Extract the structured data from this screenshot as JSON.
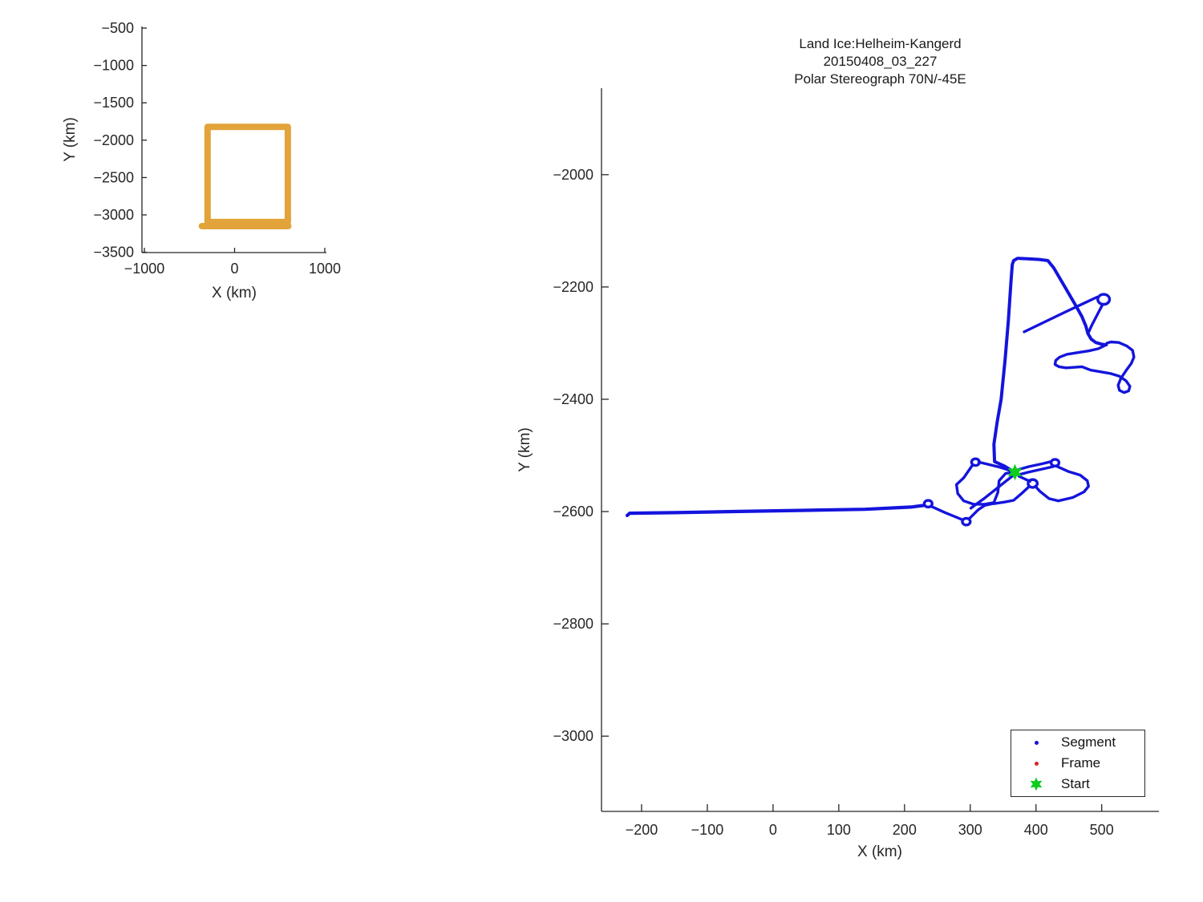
{
  "figure": {
    "background": "#ffffff",
    "text_color": "#262626",
    "axis_color": "#262626"
  },
  "main_plot": {
    "title_line1": "Land Ice:Helheim-Kangerd",
    "title_line2": "20150408_03_227",
    "title_line3": "Polar Stereograph 70N/-45E",
    "xlabel": "X (km)",
    "ylabel": "Y (km)",
    "legend": {
      "items": [
        {
          "label": "Segment",
          "color": "#1414dd",
          "marker": "dot"
        },
        {
          "label": "Frame",
          "color": "#dd2222",
          "marker": "dot"
        },
        {
          "label": "Start",
          "color": "#0ecc1e",
          "marker": "hexagram"
        }
      ]
    }
  },
  "overview_plot": {
    "xlabel": "X (km)",
    "ylabel": "Y (km)"
  },
  "chart_data": [
    {
      "name": "overview-map",
      "type": "line",
      "xlabel": "X (km)",
      "ylabel": "Y (km)",
      "xticks": [
        -1000,
        0,
        1000
      ],
      "yticks": [
        -500,
        -1000,
        -1500,
        -2000,
        -2500,
        -3000,
        -3500
      ],
      "xlim": [
        -1027,
        1018
      ],
      "ylim": [
        -478,
        -3504
      ],
      "grid": false,
      "lines": [
        {
          "name": "coverage-box",
          "color": "#e2a33b",
          "width": 8,
          "points": [
            [
              -300,
              -1823
            ],
            [
              590,
              -1823
            ],
            [
              590,
              -3095
            ],
            [
              -300,
              -3095
            ],
            [
              -300,
              -1823
            ]
          ]
        },
        {
          "name": "coverage-box-bottom",
          "color": "#e2a33b",
          "width": 8,
          "points": [
            [
              -363,
              -3150
            ],
            [
              596,
              -3150
            ]
          ]
        }
      ],
      "circles": [],
      "markers": []
    },
    {
      "name": "flight-track",
      "type": "line",
      "title": [
        "Land Ice:Helheim-Kangerd",
        "20150408_03_227",
        "Polar Stereograph 70N/-45E"
      ],
      "xlabel": "X (km)",
      "ylabel": "Y (km)",
      "xticks": [
        -200,
        -100,
        0,
        100,
        200,
        300,
        400,
        500
      ],
      "yticks": [
        -2000,
        -2200,
        -2400,
        -2600,
        -2800,
        -3000
      ],
      "xlim": [
        -261,
        587
      ],
      "ylim": [
        -1846,
        -3134
      ],
      "grid": false,
      "legend_position": "southeast",
      "series_color": "#1414dd",
      "lines": [
        {
          "name": "west-survey-line",
          "color": "#1414dd",
          "width": 4.2,
          "points": [
            [
              -222,
              -2607
            ],
            [
              -218,
              -2603
            ],
            [
              -150,
              -2602
            ],
            [
              -60,
              -2600
            ],
            [
              40,
              -2598
            ],
            [
              140,
              -2596
            ],
            [
              210,
              -2592
            ],
            [
              230,
              -2589
            ]
          ]
        },
        {
          "name": "turn-a-to-b",
          "color": "#1414dd",
          "width": 3.4,
          "points": [
            [
              241,
              -2591
            ],
            [
              262,
              -2602
            ],
            [
              287,
              -2614
            ]
          ]
        },
        {
          "name": "turn-b-to-lobe",
          "color": "#1414dd",
          "width": 3.4,
          "points": [
            [
              299,
              -2612
            ],
            [
              312,
              -2597
            ],
            [
              322,
              -2589
            ],
            [
              334,
              -2586
            ]
          ]
        },
        {
          "name": "left-lobe",
          "color": "#1414dd",
          "width": 3.4,
          "points": [
            [
              303,
              -2518
            ],
            [
              290,
              -2540
            ],
            [
              279,
              -2552
            ],
            [
              281,
              -2568
            ],
            [
              290,
              -2581
            ],
            [
              305,
              -2587
            ],
            [
              322,
              -2587
            ],
            [
              336,
              -2584
            ],
            [
              342,
              -2566
            ],
            [
              344,
              -2545
            ],
            [
              354,
              -2532
            ],
            [
              366,
              -2530
            ]
          ]
        },
        {
          "name": "left-lobe-top-edge",
          "color": "#1414dd",
          "width": 3.4,
          "points": [
            [
              364,
              -2528
            ],
            [
              345,
              -2521
            ],
            [
              324,
              -2515
            ],
            [
              313,
              -2512
            ]
          ]
        },
        {
          "name": "north-leg-and-descent",
          "color": "#1414dd",
          "width": 4.0,
          "points": [
            [
              369,
              -2531
            ],
            [
              352,
              -2519
            ],
            [
              337,
              -2511
            ],
            [
              336,
              -2480
            ],
            [
              341,
              -2440
            ],
            [
              347,
              -2400
            ],
            [
              353,
              -2330
            ],
            [
              358,
              -2260
            ],
            [
              362,
              -2190
            ],
            [
              364,
              -2160
            ],
            [
              366,
              -2153
            ],
            [
              372,
              -2149
            ],
            [
              390,
              -2150
            ],
            [
              405,
              -2151
            ],
            [
              418,
              -2153
            ],
            [
              427,
              -2166
            ],
            [
              438,
              -2188
            ],
            [
              450,
              -2212
            ],
            [
              461,
              -2234
            ],
            [
              470,
              -2253
            ],
            [
              476,
              -2270
            ],
            [
              479,
              -2283
            ],
            [
              484,
              -2293
            ],
            [
              491,
              -2299
            ],
            [
              500,
              -2302
            ],
            [
              507,
              -2303
            ]
          ]
        },
        {
          "name": "northeast-loop-cluster",
          "color": "#1414dd",
          "width": 3.4,
          "points": [
            [
              507,
              -2303
            ],
            [
              495,
              -2310
            ],
            [
              480,
              -2314
            ],
            [
              463,
              -2317
            ],
            [
              447,
              -2320
            ],
            [
              436,
              -2325
            ],
            [
              430,
              -2331
            ],
            [
              429,
              -2338
            ],
            [
              435,
              -2342
            ],
            [
              446,
              -2344
            ],
            [
              459,
              -2343
            ],
            [
              470,
              -2342
            ],
            [
              483,
              -2348
            ],
            [
              498,
              -2351
            ],
            [
              513,
              -2354
            ],
            [
              527,
              -2359
            ],
            [
              537,
              -2367
            ],
            [
              543,
              -2377
            ],
            [
              541,
              -2385
            ],
            [
              534,
              -2388
            ],
            [
              527,
              -2384
            ],
            [
              525,
              -2375
            ],
            [
              529,
              -2363
            ],
            [
              537,
              -2349
            ],
            [
              545,
              -2336
            ],
            [
              549,
              -2325
            ],
            [
              547,
              -2313
            ],
            [
              538,
              -2305
            ],
            [
              526,
              -2299
            ],
            [
              514,
              -2298
            ],
            [
              508,
              -2300
            ]
          ]
        },
        {
          "name": "cross-line-out",
          "color": "#1414dd",
          "width": 3.4,
          "points": [
            [
              382,
              -2280
            ],
            [
              412,
              -2263
            ],
            [
              444,
              -2245
            ],
            [
              473,
              -2229
            ],
            [
              493,
              -2218
            ]
          ]
        },
        {
          "name": "cross-line-return",
          "color": "#1414dd",
          "width": 3.4,
          "points": [
            [
              501,
              -2232
            ],
            [
              493,
              -2250
            ],
            [
              485,
              -2268
            ],
            [
              480,
              -2281
            ]
          ]
        },
        {
          "name": "start-to-east-loop-out",
          "color": "#1414dd",
          "width": 3.4,
          "points": [
            [
              371,
              -2526
            ],
            [
              389,
              -2520
            ],
            [
              409,
              -2515
            ],
            [
              423,
              -2511
            ]
          ]
        },
        {
          "name": "east-loop-return",
          "color": "#1414dd",
          "width": 3.4,
          "points": [
            [
              426,
              -2520
            ],
            [
              407,
              -2525
            ],
            [
              388,
              -2530
            ],
            [
              375,
              -2534
            ]
          ]
        },
        {
          "name": "right-lobe",
          "color": "#1414dd",
          "width": 3.4,
          "points": [
            [
              431,
              -2519
            ],
            [
              450,
              -2529
            ],
            [
              467,
              -2535
            ],
            [
              478,
              -2545
            ],
            [
              480,
              -2555
            ],
            [
              473,
              -2565
            ],
            [
              456,
              -2575
            ],
            [
              434,
              -2581
            ],
            [
              420,
              -2577
            ],
            [
              406,
              -2564
            ],
            [
              399,
              -2555
            ]
          ]
        },
        {
          "name": "right-lobe-to-start",
          "color": "#1414dd",
          "width": 3.4,
          "points": [
            [
              391,
              -2546
            ],
            [
              383,
              -2542
            ],
            [
              374,
              -2537
            ]
          ]
        },
        {
          "name": "start-southwest-diagonal",
          "color": "#1414dd",
          "width": 3.4,
          "points": [
            [
              366,
              -2535
            ],
            [
              352,
              -2548
            ],
            [
              337,
              -2562
            ],
            [
              322,
              -2576
            ],
            [
              309,
              -2587
            ],
            [
              301,
              -2594
            ]
          ]
        },
        {
          "name": "lobe-bottom-edge",
          "color": "#1414dd",
          "width": 3.4,
          "points": [
            [
              336,
              -2586
            ],
            [
              353,
              -2583
            ],
            [
              366,
              -2580
            ],
            [
              379,
              -2567
            ],
            [
              389,
              -2556
            ]
          ]
        }
      ],
      "circles": [
        {
          "name": "turn-loop-a",
          "c": [
            236,
            -2586
          ],
          "r": 6,
          "color": "#1414dd",
          "width": 3.4
        },
        {
          "name": "turn-loop-b",
          "c": [
            294,
            -2618
          ],
          "r": 6,
          "color": "#1414dd",
          "width": 3.4
        },
        {
          "name": "left-lobe-top-loop",
          "c": [
            308,
            -2512
          ],
          "r": 6,
          "color": "#1414dd",
          "width": 3.4
        },
        {
          "name": "northeast-small-loop",
          "c": [
            503,
            -2222
          ],
          "r": 9,
          "color": "#1414dd",
          "width": 3.4
        },
        {
          "name": "east-small-loop",
          "c": [
            429,
            -2513
          ],
          "r": 6,
          "color": "#1414dd",
          "width": 3.4
        },
        {
          "name": "below-start-loop",
          "c": [
            395,
            -2550
          ],
          "r": 7,
          "color": "#1414dd",
          "width": 3.4
        }
      ],
      "markers": [
        {
          "name": "start-marker",
          "shape": "hexagram",
          "at": [
            368,
            -2530
          ],
          "size": 9,
          "color": "#0ecc1e"
        }
      ]
    }
  ]
}
